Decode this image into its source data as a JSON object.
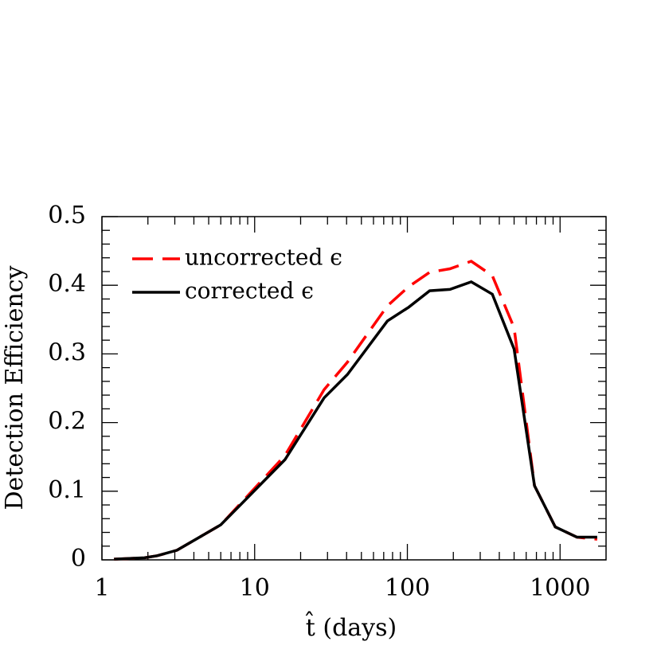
{
  "chart_data": {
    "type": "line",
    "x_label": "t̂ (days)",
    "y_label": "Detection Efficiency",
    "x": [
      1.2,
      1.9,
      2.3,
      3.1,
      6,
      15.8,
      28.5,
      40.5,
      74,
      102,
      140,
      190,
      262,
      360,
      500,
      680,
      930,
      1290,
      1750
    ],
    "series": [
      {
        "name": "uncorrected ϵ",
        "color": "#ff0000",
        "dashed": true,
        "values": [
          0.001,
          0.003,
          0.006,
          0.014,
          0.051,
          0.152,
          0.248,
          0.288,
          0.37,
          0.398,
          0.419,
          0.424,
          0.435,
          0.414,
          0.338,
          0.108,
          0.048,
          0.033,
          0.03
        ]
      },
      {
        "name": "corrected ϵ",
        "color": "#000000",
        "dashed": false,
        "values": [
          0.001,
          0.003,
          0.006,
          0.014,
          0.051,
          0.146,
          0.236,
          0.27,
          0.348,
          0.368,
          0.392,
          0.394,
          0.405,
          0.387,
          0.307,
          0.108,
          0.048,
          0.033,
          0.033
        ]
      }
    ],
    "xlim": [
      1,
      2000
    ],
    "ylim": [
      0,
      0.5
    ],
    "xscale": "log",
    "xticks": [
      1,
      10,
      100,
      1000
    ],
    "yticks": [
      0,
      0.1,
      0.2,
      0.3,
      0.4,
      0.5
    ],
    "legend": "upper left"
  }
}
